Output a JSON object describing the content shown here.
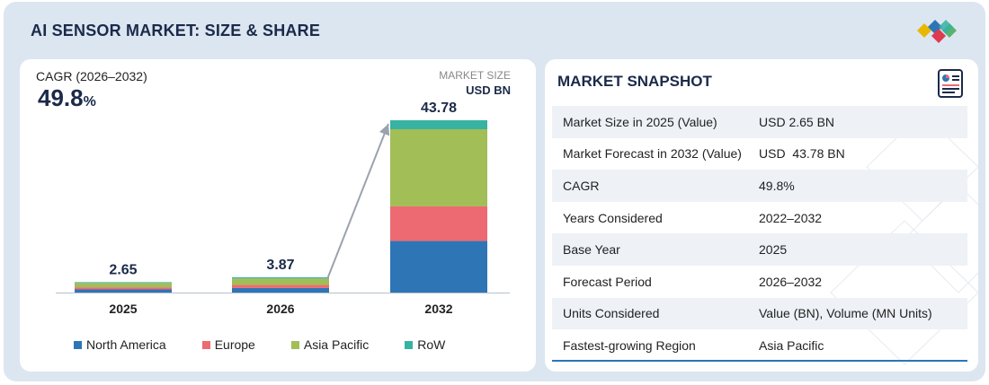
{
  "header": {
    "title": "AI SENSOR MARKET: SIZE & SHARE"
  },
  "colors": {
    "north_america": "#2e75b6",
    "europe": "#ed6a72",
    "asia_pacific": "#a2be57",
    "row": "#38b2a3",
    "navy": "#1b2a4a"
  },
  "left_panel": {
    "cagr_label": "CAGR (2026–2032)",
    "cagr_value": "49.8",
    "cagr_unit": "%",
    "market_size_label": "MARKET SIZE",
    "market_size_unit": "USD BN"
  },
  "chart_data": {
    "type": "bar",
    "stacked": true,
    "categories": [
      "2025",
      "2026",
      "2032"
    ],
    "totals": [
      "2.65",
      "3.87",
      "43.78"
    ],
    "series": [
      {
        "name": "North America",
        "values": [
          0.8,
          1.16,
          13.1
        ]
      },
      {
        "name": "Europe",
        "values": [
          0.53,
          0.77,
          8.8
        ]
      },
      {
        "name": "Asia Pacific",
        "values": [
          1.11,
          1.64,
          19.6
        ]
      },
      {
        "name": "RoW",
        "values": [
          0.21,
          0.3,
          2.28
        ]
      }
    ],
    "ylim": [
      0,
      43.78
    ],
    "grid": false,
    "legend_position": "bottom",
    "annotations": [
      "growth arrow from 2026 to 2032"
    ]
  },
  "snapshot": {
    "title": "MARKET SNAPSHOT",
    "icon": "report-icon",
    "rows": [
      {
        "key": "Market Size in 2025 (Value)",
        "value": "USD 2.65 BN"
      },
      {
        "key": "Market Forecast in 2032 (Value)",
        "value": "USD  43.78 BN"
      },
      {
        "key": "CAGR",
        "value": "49.8%"
      },
      {
        "key": "Years Considered",
        "value": "2022–2032"
      },
      {
        "key": "Base Year",
        "value": "2025"
      },
      {
        "key": "Forecast Period",
        "value": "2026–2032"
      },
      {
        "key": "Units Considered",
        "value": "Value (BN), Volume (MN Units)"
      },
      {
        "key": "Fastest-growing Region",
        "value": "Asia Pacific"
      }
    ]
  }
}
